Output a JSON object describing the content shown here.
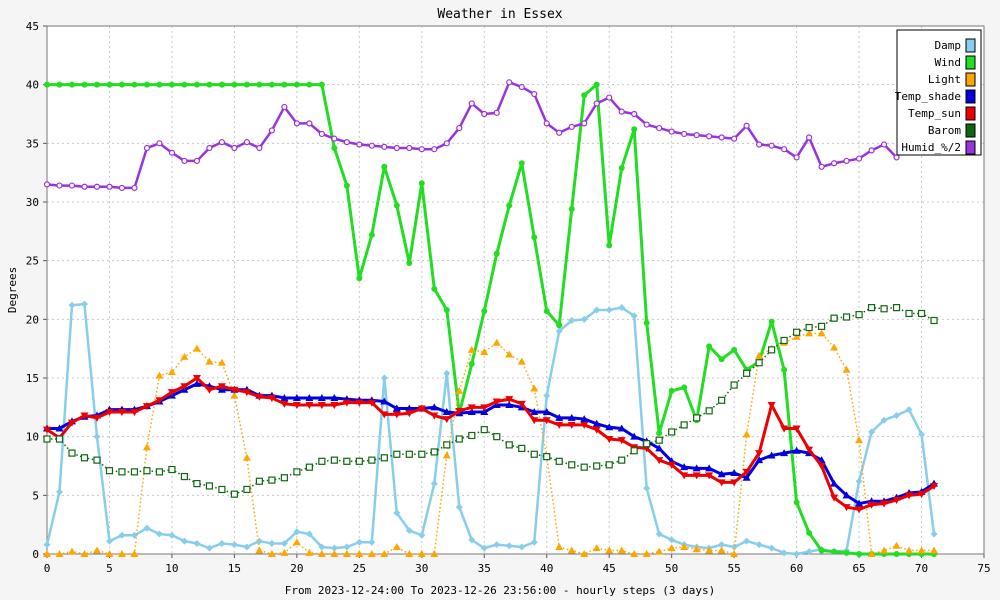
{
  "chart_data": {
    "type": "line",
    "title": "Weather in Essex",
    "ylabel": "Degrees",
    "xlabel": "From 2023-12-24:00 To 2023-12-26 23:56:00 - hourly steps (3 days)",
    "xlim": [
      0,
      75
    ],
    "ylim": [
      0,
      45
    ],
    "xticks": [
      0,
      5,
      10,
      15,
      20,
      25,
      30,
      35,
      40,
      45,
      50,
      55,
      60,
      65,
      70,
      75
    ],
    "yticks": [
      0,
      5,
      10,
      15,
      20,
      25,
      30,
      35,
      40,
      45
    ],
    "grid": true,
    "legend_position": "top-right",
    "x": [
      0,
      1,
      2,
      3,
      4,
      5,
      6,
      7,
      8,
      9,
      10,
      11,
      12,
      13,
      14,
      15,
      16,
      17,
      18,
      19,
      20,
      21,
      22,
      23,
      24,
      25,
      26,
      27,
      28,
      29,
      30,
      31,
      32,
      33,
      34,
      35,
      36,
      37,
      38,
      39,
      40,
      41,
      42,
      43,
      44,
      45,
      46,
      47,
      48,
      49,
      50,
      51,
      52,
      53,
      54,
      55,
      56,
      57,
      58,
      59,
      60,
      61,
      62,
      63,
      64,
      65,
      66,
      67,
      68,
      69,
      70,
      71
    ],
    "series": [
      {
        "name": "Damp",
        "color": "#87ceeb",
        "marker": "diamond",
        "style": "solid",
        "values": [
          0.8,
          5.3,
          21.2,
          21.3,
          10.0,
          1.1,
          1.6,
          1.6,
          2.2,
          1.7,
          1.6,
          1.1,
          0.9,
          0.5,
          0.9,
          0.8,
          0.6,
          1.1,
          0.9,
          0.9,
          1.9,
          1.7,
          0.6,
          0.5,
          0.6,
          1.0,
          1.0,
          15.0,
          3.5,
          2.0,
          1.6,
          6.0,
          15.4,
          4.0,
          1.2,
          0.5,
          0.8,
          0.7,
          0.6,
          1.0,
          13.5,
          19.0,
          19.9,
          20.0,
          20.8,
          20.8,
          21.0,
          20.3,
          5.6,
          1.7,
          1.2,
          0.8,
          0.6,
          0.5,
          0.8,
          0.6,
          1.1,
          0.8,
          0.5,
          0.1,
          0.0,
          0.2,
          0.4,
          0.2,
          0.3,
          6.2,
          10.4,
          11.4,
          11.8,
          12.3,
          10.2,
          1.7
        ]
      },
      {
        "name": "Wind",
        "color": "#22dd22",
        "marker": "circle",
        "style": "solid-thick",
        "values": [
          40,
          40,
          40,
          40,
          40,
          40,
          40,
          40,
          40,
          40,
          40,
          40,
          40,
          40,
          40,
          40,
          40,
          40,
          40,
          40,
          40,
          40,
          40,
          34.6,
          31.4,
          23.5,
          27.2,
          33.0,
          29.7,
          24.8,
          31.6,
          22.6,
          20.8,
          12.0,
          16.2,
          20.7,
          25.6,
          29.7,
          33.3,
          27.0,
          20.7,
          19.5,
          29.4,
          39.1,
          40.0,
          26.3,
          32.9,
          36.2,
          19.7,
          10.3,
          13.9,
          14.2,
          11.4,
          17.7,
          16.6,
          17.4,
          15.7,
          16.4,
          19.8,
          15.7,
          4.4,
          1.8,
          0.3,
          0.2,
          0.1,
          0.0,
          0.0,
          0.0,
          0.0,
          0.0,
          0.0,
          0.0
        ]
      },
      {
        "name": "Light",
        "color": "#ffa500",
        "marker": "triangle-up",
        "style": "dotted",
        "values": [
          0.0,
          0.0,
          0.2,
          0.0,
          0.3,
          0.0,
          0.0,
          0.0,
          9.1,
          15.2,
          15.5,
          16.8,
          17.5,
          16.4,
          16.3,
          13.5,
          8.2,
          0.3,
          0.0,
          0.1,
          1.0,
          0.1,
          0.0,
          0.0,
          0.0,
          0.0,
          0.0,
          0.0,
          0.6,
          0.0,
          0.0,
          0.0,
          8.4,
          13.9,
          17.4,
          17.2,
          18.0,
          17.0,
          16.4,
          14.1,
          8.3,
          0.6,
          0.3,
          0.0,
          0.5,
          0.3,
          0.3,
          0.0,
          0.0,
          0.2,
          0.5,
          0.6,
          0.4,
          0.3,
          0.3,
          0.0,
          10.2,
          16.9,
          17.5,
          18.0,
          18.5,
          18.8,
          18.8,
          17.6,
          15.7,
          9.7,
          0.0,
          0.3,
          0.7,
          0.3,
          0.3,
          0.3
        ]
      },
      {
        "name": "Temp_shade",
        "color": "#0000dd",
        "marker": "triangle-up",
        "style": "solid-thick",
        "values": [
          10.7,
          10.7,
          11.3,
          11.7,
          11.8,
          12.3,
          12.3,
          12.3,
          12.6,
          13.0,
          13.5,
          14.0,
          14.5,
          14.3,
          14.0,
          14.0,
          14.0,
          13.5,
          13.5,
          13.3,
          13.3,
          13.3,
          13.3,
          13.3,
          13.2,
          13.1,
          13.1,
          13.0,
          12.4,
          12.4,
          12.4,
          12.5,
          12.1,
          12.0,
          12.1,
          12.1,
          12.7,
          12.7,
          12.5,
          12.1,
          12.1,
          11.6,
          11.6,
          11.5,
          11.1,
          10.8,
          10.7,
          10.0,
          9.6,
          9.0,
          7.9,
          7.4,
          7.3,
          7.3,
          6.8,
          6.9,
          6.5,
          8.0,
          8.4,
          8.6,
          8.8,
          8.6,
          8.0,
          6.0,
          5.0,
          4.3,
          4.5,
          4.5,
          4.8,
          5.2,
          5.3,
          6.0
        ]
      },
      {
        "name": "Temp_sun",
        "color": "#ee0000",
        "marker": "triangle-down",
        "style": "solid-thick",
        "values": [
          10.6,
          9.9,
          11.2,
          11.8,
          11.6,
          12.1,
          12.1,
          12.1,
          12.6,
          13.1,
          13.8,
          14.3,
          15.0,
          14.0,
          14.3,
          14.0,
          13.8,
          13.4,
          13.3,
          12.8,
          12.7,
          12.7,
          12.7,
          12.7,
          12.9,
          12.9,
          12.9,
          11.9,
          11.9,
          12.0,
          12.4,
          11.8,
          11.5,
          12.2,
          12.5,
          12.5,
          13.0,
          13.2,
          12.8,
          11.4,
          11.4,
          11.0,
          11.0,
          11.0,
          10.6,
          9.8,
          9.7,
          9.1,
          9.0,
          8.0,
          7.6,
          6.7,
          6.7,
          6.7,
          6.1,
          6.1,
          7.0,
          8.6,
          12.7,
          10.7,
          10.7,
          8.9,
          7.5,
          4.8,
          4.0,
          3.8,
          4.2,
          4.3,
          4.6,
          5.0,
          5.1,
          5.8
        ]
      },
      {
        "name": "Barom",
        "color": "#116611",
        "marker": "square",
        "style": "dotted",
        "values": [
          9.8,
          9.8,
          8.6,
          8.2,
          8.0,
          7.1,
          7.0,
          7.0,
          7.1,
          7.0,
          7.2,
          6.6,
          6.0,
          5.8,
          5.5,
          5.1,
          5.5,
          6.2,
          6.3,
          6.5,
          7.0,
          7.4,
          7.9,
          8.0,
          7.9,
          7.9,
          8.0,
          8.2,
          8.5,
          8.5,
          8.5,
          8.7,
          9.3,
          9.8,
          10.1,
          10.6,
          10.0,
          9.3,
          9.0,
          8.5,
          8.3,
          7.9,
          7.6,
          7.4,
          7.5,
          7.6,
          8.0,
          8.8,
          9.4,
          9.7,
          10.4,
          11.0,
          11.6,
          12.2,
          13.1,
          14.4,
          15.4,
          16.3,
          17.4,
          18.2,
          18.9,
          19.3,
          19.4,
          20.1,
          20.2,
          20.4,
          21.0,
          20.9,
          21.0,
          20.5,
          20.5,
          19.9
        ]
      },
      {
        "name": "Humid_%/2",
        "color": "#9933dd",
        "marker": "circle-open",
        "style": "solid",
        "values": [
          31.5,
          31.4,
          31.4,
          31.3,
          31.3,
          31.3,
          31.2,
          31.2,
          34.6,
          35.0,
          34.2,
          33.5,
          33.5,
          34.6,
          35.1,
          34.6,
          35.1,
          34.6,
          36.1,
          38.1,
          36.7,
          36.7,
          35.8,
          35.4,
          35.1,
          34.9,
          34.8,
          34.7,
          34.6,
          34.6,
          34.5,
          34.5,
          35.0,
          36.3,
          38.4,
          37.5,
          37.6,
          40.2,
          39.8,
          39.2,
          36.7,
          35.9,
          36.4,
          36.7,
          38.4,
          38.9,
          37.7,
          37.5,
          36.6,
          36.3,
          36.0,
          35.8,
          35.7,
          35.6,
          35.5,
          35.4,
          36.5,
          34.9,
          34.8,
          34.5,
          33.8,
          35.5,
          33.0,
          33.3,
          33.5,
          33.7,
          34.4,
          34.9,
          33.8,
          null,
          null,
          null
        ]
      }
    ]
  }
}
